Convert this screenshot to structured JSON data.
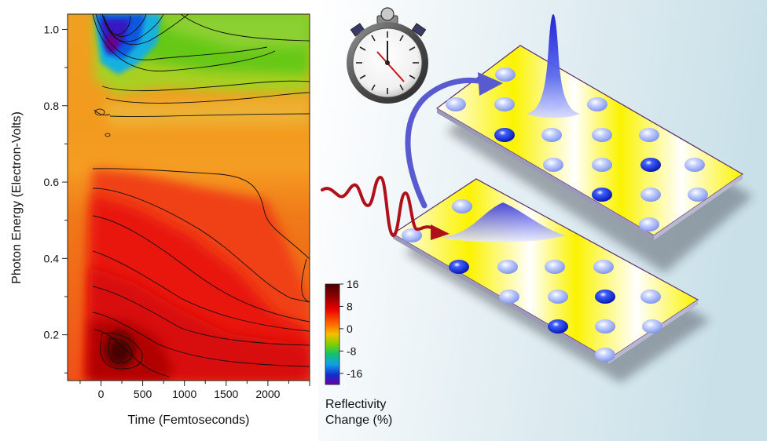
{
  "chart_data": {
    "type": "heatmap",
    "xlabel": "Time (Femtoseconds)",
    "ylabel": "Photon Energy (Electron-Volts)",
    "xlim": [
      -400,
      2500
    ],
    "ylim": [
      0.08,
      1.04
    ],
    "x_ticks": [
      "0",
      "500",
      "1000",
      "1500",
      "2000"
    ],
    "y_ticks": [
      "0.2",
      "0.4",
      "0.6",
      "0.8",
      "1.0"
    ],
    "colorbar": {
      "title_line1": "Reflectivity",
      "title_line2": "Change (%)",
      "range": [
        -20,
        16
      ],
      "ticks": [
        "16",
        "8",
        "0",
        "-8",
        "-16"
      ]
    },
    "features": [
      {
        "name": "positive peak",
        "x": 220,
        "y": 0.16,
        "value": 16
      },
      {
        "name": "negative peak",
        "x": 150,
        "y": 0.95,
        "value": -18
      },
      {
        "name": "zero-change band",
        "y_range": [
          0.64,
          0.8
        ]
      }
    ],
    "grid": false
  },
  "schematic": {
    "stopwatch": "stopwatch-icon",
    "pulse_color": "#b0101a",
    "arrow_color": "#5a5ad0",
    "lattice_color": "#f4f000",
    "atom_color": "#8ea4f0",
    "excited_atom_color": "#0a1fd0"
  }
}
